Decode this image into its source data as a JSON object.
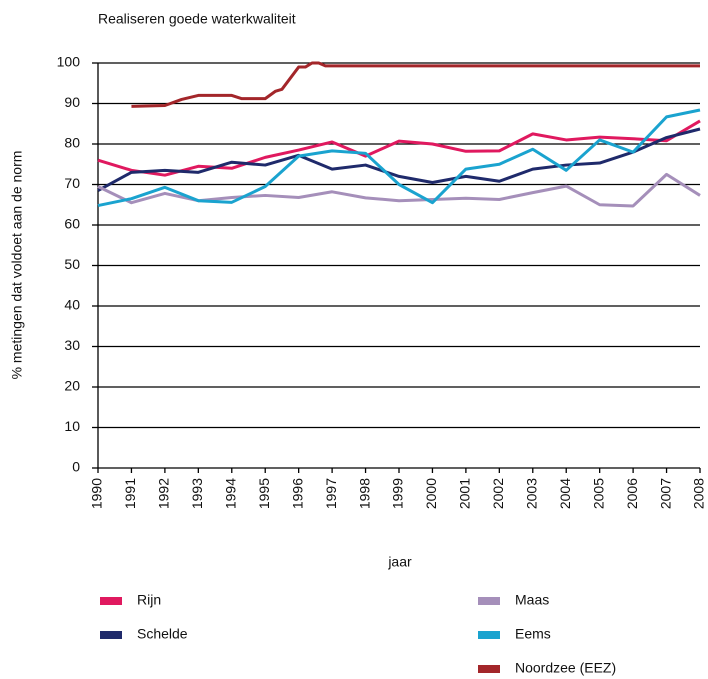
{
  "chart_data": {
    "type": "line",
    "title": "Realiseren goede waterkwaliteit",
    "y_label": "% metingen dat voldoet aan de norm",
    "x_label": "jaar",
    "x": [
      1990,
      1991,
      1992,
      1993,
      1994,
      1995,
      1996,
      1997,
      1998,
      1999,
      2000,
      2001,
      2002,
      2003,
      2004,
      2005,
      2006,
      2007,
      2008
    ],
    "xlim": [
      1990,
      2008
    ],
    "xticks": [
      1990,
      1991,
      1992,
      1993,
      1994,
      1995,
      1996,
      1997,
      1998,
      1999,
      2000,
      2001,
      2002,
      2003,
      2004,
      2005,
      2006,
      2007,
      2008
    ],
    "ylim": [
      0,
      100
    ],
    "yticks": [
      0,
      10,
      20,
      30,
      40,
      50,
      60,
      70,
      80,
      90,
      100
    ],
    "grid": true,
    "series": [
      {
        "name": "Rijn",
        "color": "#e0195f",
        "values": [
          76,
          73.5,
          72.3,
          74.5,
          74,
          76.7,
          78.5,
          80.5,
          77,
          80.7,
          80,
          78.2,
          78.3,
          82.5,
          81,
          81.7,
          81.3,
          80.8,
          85.7
        ]
      },
      {
        "name": "Schelde",
        "color": "#1f2a6b",
        "values": [
          68.5,
          73,
          73.5,
          73,
          75.5,
          74.8,
          77.2,
          73.8,
          74.8,
          72,
          70.5,
          72,
          70.8,
          73.8,
          74.8,
          75.3,
          78,
          81.6,
          83.7
        ]
      },
      {
        "name": "Maas",
        "color": "#a58fba",
        "values": [
          69.5,
          65.5,
          67.8,
          66,
          66.8,
          67.3,
          66.8,
          68.2,
          66.7,
          66,
          66.3,
          66.6,
          66.3,
          68,
          69.6,
          65,
          64.7,
          72.5,
          67.3
        ]
      },
      {
        "name": "Eems",
        "color": "#1aa3cf",
        "values": [
          64.8,
          66.5,
          69.3,
          66,
          65.6,
          69.5,
          77,
          78.3,
          77.7,
          70,
          65.5,
          73.8,
          75,
          78.7,
          73.5,
          81,
          78,
          86.7,
          88.4
        ]
      },
      {
        "name": "Noordzee (EEZ)",
        "color": "#a3262a",
        "x": [
          1991,
          1992,
          1992.5,
          1993,
          1994,
          1994.3,
          1995,
          1995.3,
          1995.5,
          1996,
          1996.2,
          1996.4,
          1996.6,
          1996.8,
          1997,
          2008
        ],
        "values": [
          89.3,
          89.5,
          91,
          92,
          92,
          91.2,
          91.2,
          93,
          93.5,
          99,
          99,
          100,
          100,
          99.3,
          99.3,
          99.3
        ]
      }
    ]
  }
}
